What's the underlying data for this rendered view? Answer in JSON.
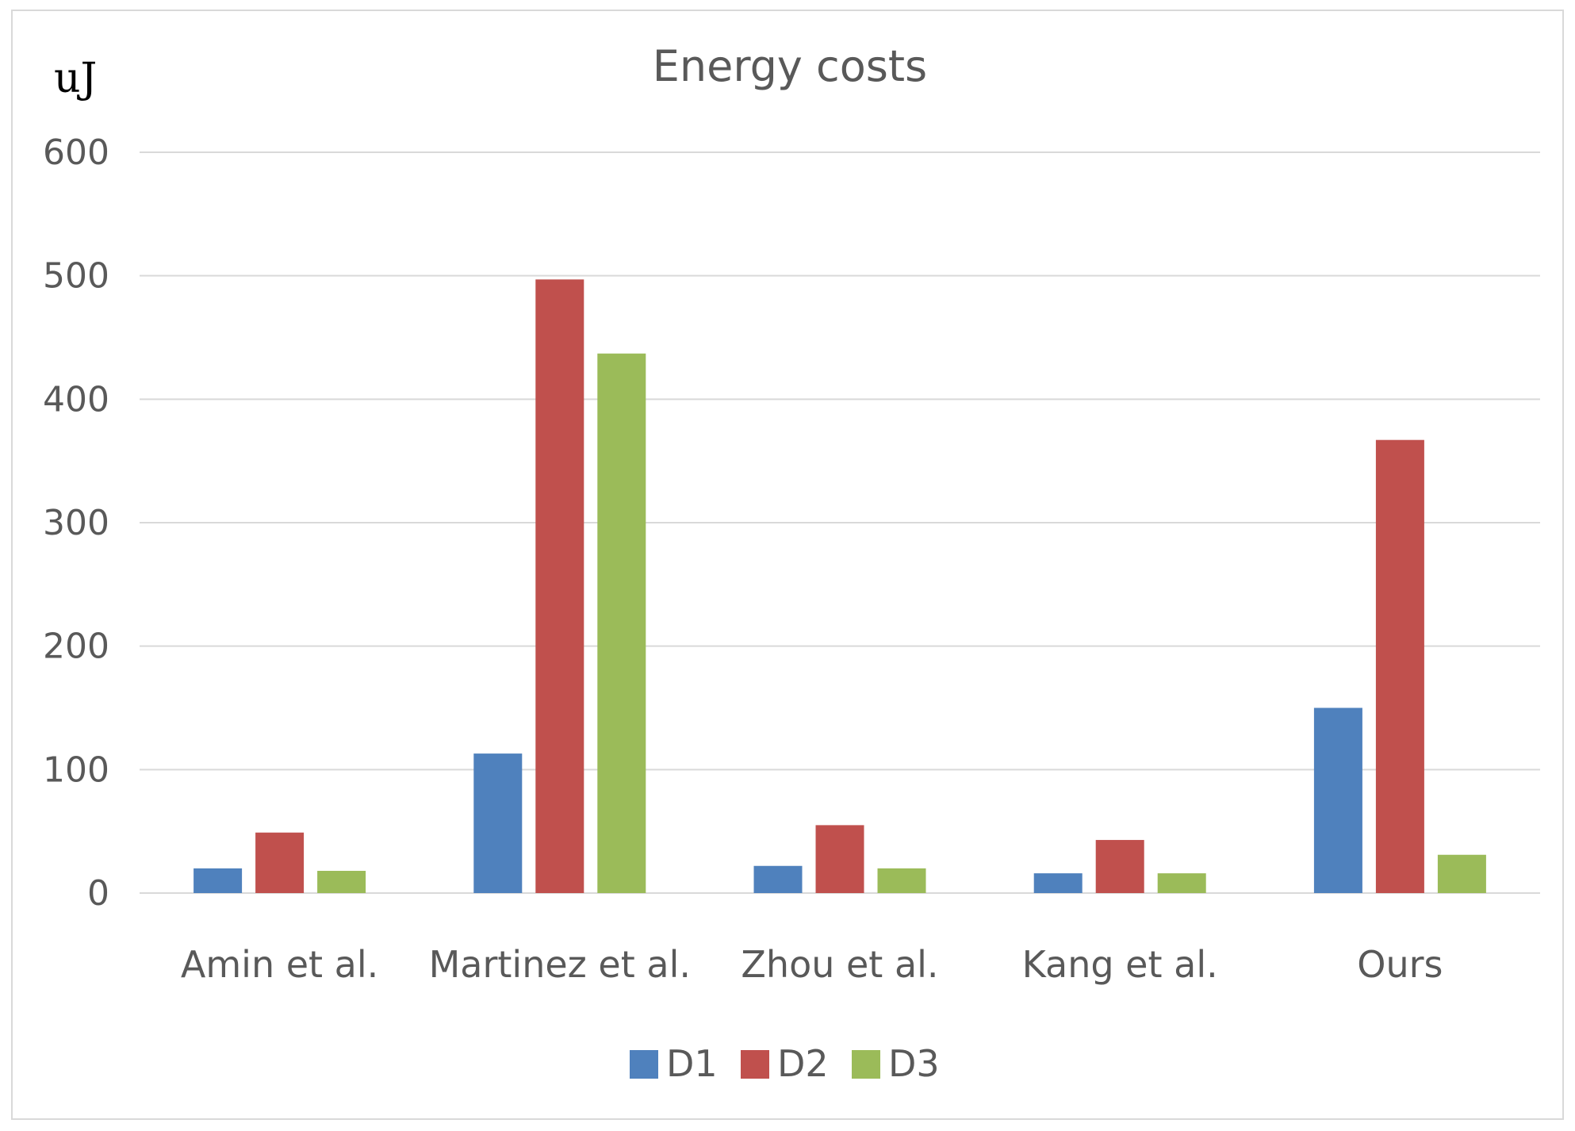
{
  "chart_data": {
    "type": "bar",
    "title": "Energy costs",
    "unit_label": "uJ",
    "xlabel": "",
    "ylabel": "uJ",
    "ylim": [
      0,
      600
    ],
    "yticks": [
      0,
      100,
      200,
      300,
      400,
      500,
      600
    ],
    "grid": true,
    "legend_position": "bottom",
    "categories": [
      "Amin et al.",
      "Martinez et al.",
      "Zhou et al.",
      "Kang et al.",
      "Ours"
    ],
    "series": [
      {
        "name": "D1",
        "color": "#4f81bd",
        "values": [
          20,
          113,
          22,
          16,
          150
        ]
      },
      {
        "name": "D2",
        "color": "#c0504d",
        "values": [
          49,
          497,
          55,
          43,
          367
        ]
      },
      {
        "name": "D3",
        "color": "#9bbb59",
        "values": [
          18,
          437,
          20,
          16,
          31
        ]
      }
    ]
  }
}
